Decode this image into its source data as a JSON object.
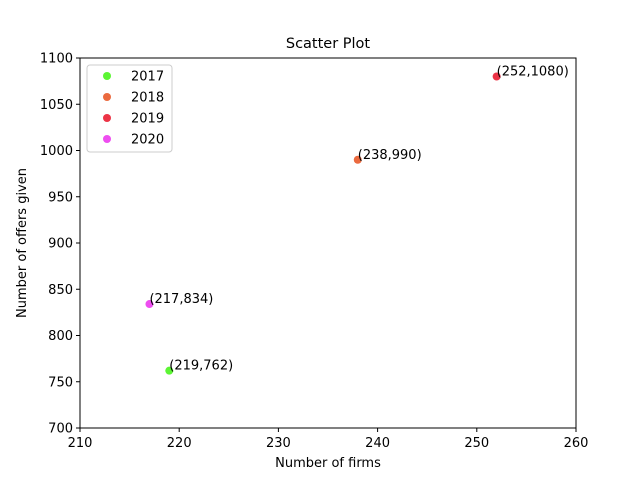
{
  "chart_data": {
    "type": "scatter",
    "title": "Scatter Plot",
    "xlabel": "Number of firms",
    "ylabel": "Number of offers given",
    "xlim": [
      210,
      260
    ],
    "ylim": [
      700,
      1100
    ],
    "xticks": [
      210,
      220,
      230,
      240,
      250,
      260
    ],
    "yticks": [
      700,
      750,
      800,
      850,
      900,
      950,
      1000,
      1050,
      1100
    ],
    "grid": false,
    "legend_position": "top-left",
    "series": [
      {
        "name": "2017",
        "color": "#5cf534",
        "x": [
          219
        ],
        "y": [
          762
        ],
        "labels": [
          "(219,762)"
        ]
      },
      {
        "name": "2018",
        "color": "#eb6a3f",
        "x": [
          238
        ],
        "y": [
          990
        ],
        "labels": [
          "(238,990)"
        ]
      },
      {
        "name": "2019",
        "color": "#ec3446",
        "x": [
          252
        ],
        "y": [
          1080
        ],
        "labels": [
          "(252,1080)"
        ]
      },
      {
        "name": "2020",
        "color": "#ee4ef0",
        "x": [
          217
        ],
        "y": [
          834
        ],
        "labels": [
          "(217,834)"
        ]
      }
    ]
  }
}
